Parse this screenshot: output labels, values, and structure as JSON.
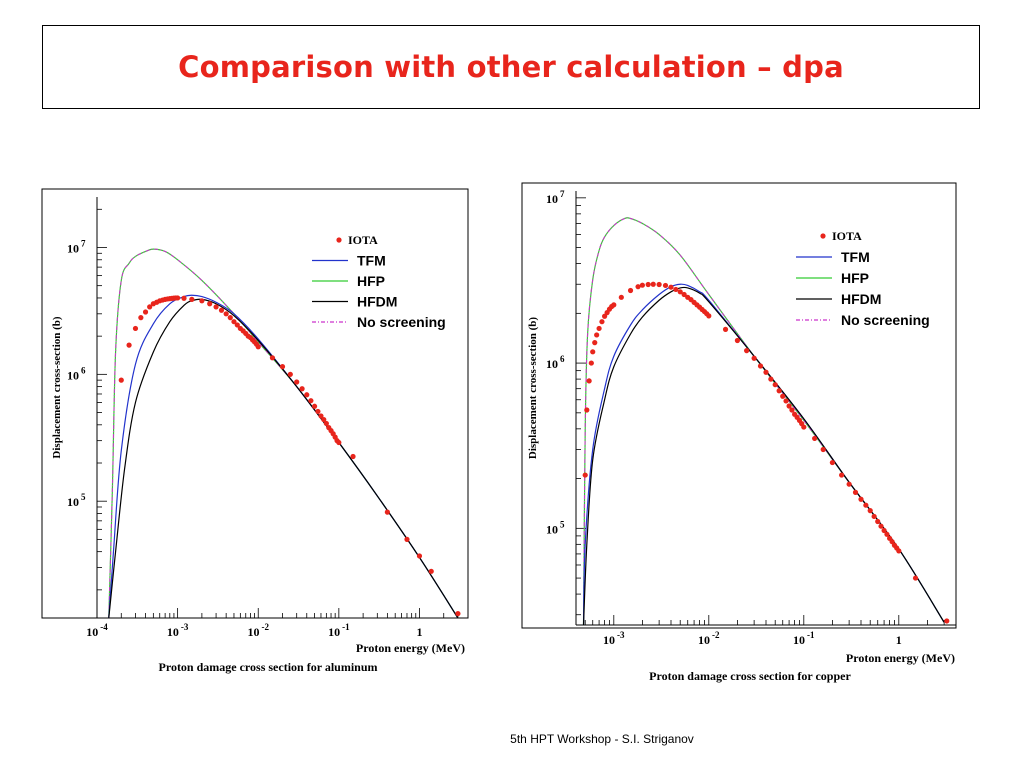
{
  "slide": {
    "title": "Comparison with other calculation – dpa",
    "footer": "5th HPT Workshop  -  S.I. Striganov"
  },
  "legend_items": [
    {
      "name": "IOTA",
      "kind": "points",
      "color": "#e8251c"
    },
    {
      "name": "TFM",
      "kind": "line",
      "color": "#2233cc"
    },
    {
      "name": "HFP",
      "kind": "line",
      "color": "#33cc33"
    },
    {
      "name": "HFDM",
      "kind": "line",
      "color": "#000000"
    },
    {
      "name": "No screening",
      "kind": "dashdot",
      "color": "#cc33cc"
    }
  ],
  "chart_data": [
    {
      "type": "line",
      "xlabel": "Proton energy (MeV)",
      "ylabel": "Displacement cross-section (b)",
      "caption": "Proton damage cross section for aluminum",
      "xscale": "log",
      "yscale": "log",
      "xlim": [
        0.0001,
        4
      ],
      "ylim": [
        12000,
        25000000
      ],
      "x_tick_labels": [
        {
          "value": 0.0001,
          "base": "10",
          "exp": "-4"
        },
        {
          "value": 0.001,
          "base": "10",
          "exp": "-3"
        },
        {
          "value": 0.01,
          "base": "10",
          "exp": "-2"
        },
        {
          "value": 0.1,
          "base": "10",
          "exp": "-1"
        },
        {
          "value": 1,
          "base": "1",
          "exp": ""
        }
      ],
      "y_tick_labels": [
        {
          "value": 100000,
          "base": "10",
          "exp": "5"
        },
        {
          "value": 1000000,
          "base": "10",
          "exp": "6"
        },
        {
          "value": 10000000,
          "base": "10",
          "exp": "7"
        }
      ],
      "legend_position": "top-right",
      "series": [
        {
          "name": "HFP",
          "color": "#33cc33",
          "style": "solid",
          "points": [
            [
              0.00014,
              12000
            ],
            [
              0.000155,
              120000
            ],
            [
              0.00017,
              1500000
            ],
            [
              0.0002,
              5500000
            ],
            [
              0.00025,
              7500000
            ],
            [
              0.0003,
              8500000
            ],
            [
              0.0004,
              9300000
            ],
            [
              0.0005,
              9700000
            ],
            [
              0.0007,
              9300000
            ],
            [
              0.001,
              8000000
            ],
            [
              0.002,
              5500000
            ],
            [
              0.005,
              3000000
            ],
            [
              0.01,
              1800000
            ],
            [
              0.03,
              800000
            ],
            [
              0.1,
              290000
            ],
            [
              0.3,
              110000
            ],
            [
              1,
              36000
            ],
            [
              3,
              12000
            ]
          ]
        },
        {
          "name": "No screening",
          "color": "#cc33cc",
          "style": "dashdot",
          "points": [
            [
              0.00014,
              12000
            ],
            [
              0.000155,
              120000
            ],
            [
              0.00017,
              1500000
            ],
            [
              0.0002,
              5500000
            ],
            [
              0.00025,
              7500000
            ],
            [
              0.0003,
              8500000
            ],
            [
              0.0004,
              9300000
            ],
            [
              0.0005,
              9700000
            ],
            [
              0.0007,
              9300000
            ],
            [
              0.001,
              8000000
            ],
            [
              0.002,
              5500000
            ],
            [
              0.005,
              3000000
            ],
            [
              0.01,
              1800000
            ],
            [
              0.03,
              800000
            ],
            [
              0.1,
              290000
            ],
            [
              0.3,
              110000
            ],
            [
              1,
              36000
            ],
            [
              3,
              12000
            ]
          ]
        },
        {
          "name": "TFM",
          "color": "#2233cc",
          "style": "solid",
          "points": [
            [
              0.00014,
              12000
            ],
            [
              0.00016,
              40000
            ],
            [
              0.0002,
              250000
            ],
            [
              0.0003,
              1200000
            ],
            [
              0.0005,
              2500000
            ],
            [
              0.0008,
              3600000
            ],
            [
              0.0012,
              4100000
            ],
            [
              0.0015,
              4200000
            ],
            [
              0.002,
              4100000
            ],
            [
              0.003,
              3700000
            ],
            [
              0.005,
              3000000
            ],
            [
              0.01,
              1900000
            ],
            [
              0.03,
              800000
            ],
            [
              0.1,
              290000
            ],
            [
              0.3,
              110000
            ],
            [
              1,
              36000
            ],
            [
              3,
              12000
            ]
          ]
        },
        {
          "name": "HFDM",
          "color": "#000000",
          "style": "solid",
          "points": [
            [
              0.00014,
              12000
            ],
            [
              0.00017,
              40000
            ],
            [
              0.00022,
              180000
            ],
            [
              0.0003,
              600000
            ],
            [
              0.0005,
              1500000
            ],
            [
              0.0008,
              2600000
            ],
            [
              0.0012,
              3500000
            ],
            [
              0.0015,
              3800000
            ],
            [
              0.002,
              3900000
            ],
            [
              0.003,
              3600000
            ],
            [
              0.005,
              2900000
            ],
            [
              0.01,
              1850000
            ],
            [
              0.03,
              800000
            ],
            [
              0.1,
              290000
            ],
            [
              0.3,
              110000
            ],
            [
              1,
              36000
            ],
            [
              3,
              12000
            ]
          ]
        }
      ],
      "points_series": {
        "name": "IOTA",
        "color": "#e8251c",
        "x": [
          0.0002,
          0.00025,
          0.0003,
          0.00035,
          0.0004,
          0.00045,
          0.0005,
          0.00055,
          0.0006,
          0.00065,
          0.0007,
          0.00075,
          0.0008,
          0.00085,
          0.0009,
          0.00095,
          0.001,
          0.0012,
          0.0015,
          0.002,
          0.0025,
          0.003,
          0.0035,
          0.004,
          0.0045,
          0.005,
          0.0055,
          0.006,
          0.0065,
          0.007,
          0.0075,
          0.008,
          0.0085,
          0.009,
          0.0095,
          0.01,
          0.015,
          0.02,
          0.025,
          0.03,
          0.035,
          0.04,
          0.045,
          0.05,
          0.055,
          0.06,
          0.065,
          0.07,
          0.075,
          0.08,
          0.085,
          0.09,
          0.095,
          0.1,
          0.15,
          0.4,
          0.7,
          1,
          1.4,
          3
        ],
        "y": [
          900000,
          1700000,
          2300000,
          2800000,
          3100000,
          3400000,
          3600000,
          3700000,
          3800000,
          3850000,
          3900000,
          3930000,
          3950000,
          3970000,
          3990000,
          4000000,
          4000000,
          3980000,
          3900000,
          3800000,
          3600000,
          3400000,
          3200000,
          3000000,
          2800000,
          2600000,
          2450000,
          2300000,
          2200000,
          2100000,
          2000000,
          1950000,
          1870000,
          1800000,
          1730000,
          1650000,
          1350000,
          1150000,
          1000000,
          870000,
          770000,
          690000,
          620000,
          560000,
          510000,
          470000,
          440000,
          410000,
          380000,
          360000,
          340000,
          320000,
          300000,
          290000,
          225000,
          82000,
          50000,
          37000,
          28000,
          13000
        ]
      }
    },
    {
      "type": "line",
      "xlabel": "Proton energy (MeV)",
      "ylabel": "Displacement cross-section (b)",
      "caption": "Proton damage cross section for copper",
      "xscale": "log",
      "yscale": "log",
      "xlim": [
        0.0004,
        4
      ],
      "ylim": [
        26000,
        11000000
      ],
      "x_tick_labels": [
        {
          "value": 0.001,
          "base": "10",
          "exp": "-3"
        },
        {
          "value": 0.01,
          "base": "10",
          "exp": "-2"
        },
        {
          "value": 0.1,
          "base": "10",
          "exp": "-1"
        },
        {
          "value": 1,
          "base": "1",
          "exp": ""
        }
      ],
      "y_tick_labels": [
        {
          "value": 100000,
          "base": "10",
          "exp": "5"
        },
        {
          "value": 1000000,
          "base": "10",
          "exp": "6"
        },
        {
          "value": 10000000,
          "base": "10",
          "exp": "7"
        }
      ],
      "legend_position": "top-right",
      "series": [
        {
          "name": "HFP",
          "color": "#33cc33",
          "style": "solid",
          "points": [
            [
              0.00048,
              26000
            ],
            [
              0.0005,
              400000
            ],
            [
              0.00053,
              1500000
            ],
            [
              0.0006,
              3200000
            ],
            [
              0.0007,
              4800000
            ],
            [
              0.0008,
              5800000
            ],
            [
              0.001,
              6800000
            ],
            [
              0.0013,
              7500000
            ],
            [
              0.0015,
              7500000
            ],
            [
              0.002,
              7000000
            ],
            [
              0.003,
              6000000
            ],
            [
              0.005,
              4500000
            ],
            [
              0.01,
              2600000
            ],
            [
              0.03,
              1100000
            ],
            [
              0.1,
              450000
            ],
            [
              0.3,
              190000
            ],
            [
              1,
              75000
            ],
            [
              3,
              27000
            ]
          ]
        },
        {
          "name": "No screening",
          "color": "#cc33cc",
          "style": "dashdot",
          "points": [
            [
              0.00048,
              26000
            ],
            [
              0.0005,
              400000
            ],
            [
              0.00053,
              1500000
            ],
            [
              0.0006,
              3200000
            ],
            [
              0.0007,
              4800000
            ],
            [
              0.0008,
              5800000
            ],
            [
              0.001,
              6800000
            ],
            [
              0.0013,
              7500000
            ],
            [
              0.0015,
              7500000
            ],
            [
              0.002,
              7000000
            ],
            [
              0.003,
              6000000
            ],
            [
              0.005,
              4500000
            ],
            [
              0.01,
              2600000
            ],
            [
              0.03,
              1100000
            ],
            [
              0.1,
              450000
            ],
            [
              0.3,
              190000
            ],
            [
              1,
              75000
            ],
            [
              3,
              27000
            ]
          ]
        },
        {
          "name": "TFM",
          "color": "#2233cc",
          "style": "solid",
          "points": [
            [
              0.00048,
              26000
            ],
            [
              0.0005,
              80000
            ],
            [
              0.0006,
              300000
            ],
            [
              0.0008,
              700000
            ],
            [
              0.001,
              1100000
            ],
            [
              0.0015,
              1700000
            ],
            [
              0.002,
              2100000
            ],
            [
              0.003,
              2600000
            ],
            [
              0.004,
              2900000
            ],
            [
              0.005,
              3000000
            ],
            [
              0.006,
              2950000
            ],
            [
              0.008,
              2700000
            ],
            [
              0.01,
              2400000
            ],
            [
              0.03,
              1100000
            ],
            [
              0.1,
              460000
            ],
            [
              0.3,
              190000
            ],
            [
              1,
              75000
            ],
            [
              3,
              27000
            ]
          ]
        },
        {
          "name": "HFDM",
          "color": "#000000",
          "style": "solid",
          "points": [
            [
              0.00048,
              26000
            ],
            [
              0.00052,
              80000
            ],
            [
              0.0006,
              260000
            ],
            [
              0.0008,
              600000
            ],
            [
              0.001,
              950000
            ],
            [
              0.0015,
              1500000
            ],
            [
              0.002,
              1900000
            ],
            [
              0.003,
              2400000
            ],
            [
              0.004,
              2700000
            ],
            [
              0.005,
              2850000
            ],
            [
              0.006,
              2850000
            ],
            [
              0.008,
              2650000
            ],
            [
              0.01,
              2350000
            ],
            [
              0.03,
              1100000
            ],
            [
              0.1,
              460000
            ],
            [
              0.3,
              190000
            ],
            [
              1,
              75000
            ],
            [
              3,
              27000
            ]
          ]
        }
      ],
      "points_series": {
        "name": "IOTA",
        "color": "#e8251c",
        "x": [
          0.0005,
          0.00052,
          0.00055,
          0.00058,
          0.0006,
          0.00063,
          0.00066,
          0.0007,
          0.00075,
          0.0008,
          0.00085,
          0.0009,
          0.00095,
          0.001,
          0.0012,
          0.0015,
          0.0018,
          0.002,
          0.0023,
          0.0026,
          0.003,
          0.0035,
          0.004,
          0.0045,
          0.005,
          0.0055,
          0.006,
          0.0065,
          0.007,
          0.0075,
          0.008,
          0.0085,
          0.009,
          0.0095,
          0.01,
          0.015,
          0.02,
          0.025,
          0.03,
          0.035,
          0.04,
          0.045,
          0.05,
          0.055,
          0.06,
          0.065,
          0.07,
          0.075,
          0.08,
          0.085,
          0.09,
          0.095,
          0.1,
          0.13,
          0.16,
          0.2,
          0.25,
          0.3,
          0.35,
          0.4,
          0.45,
          0.5,
          0.55,
          0.6,
          0.65,
          0.7,
          0.75,
          0.8,
          0.85,
          0.9,
          0.95,
          1,
          1.5,
          3.2
        ],
        "y": [
          210000,
          520000,
          780000,
          1000000,
          1170000,
          1330000,
          1480000,
          1620000,
          1780000,
          1920000,
          2020000,
          2120000,
          2200000,
          2250000,
          2500000,
          2750000,
          2900000,
          2960000,
          2990000,
          3000000,
          2990000,
          2950000,
          2880000,
          2790000,
          2700000,
          2600000,
          2500000,
          2420000,
          2330000,
          2250000,
          2180000,
          2110000,
          2050000,
          1990000,
          1930000,
          1600000,
          1370000,
          1190000,
          1070000,
          960000,
          880000,
          800000,
          740000,
          680000,
          630000,
          590000,
          550000,
          520000,
          490000,
          470000,
          450000,
          430000,
          410000,
          350000,
          300000,
          250000,
          210000,
          185000,
          165000,
          150000,
          138000,
          128000,
          118000,
          110000,
          103000,
          97000,
          92000,
          87000,
          83000,
          79000,
          76000,
          73000,
          50000,
          27500
        ]
      }
    }
  ]
}
